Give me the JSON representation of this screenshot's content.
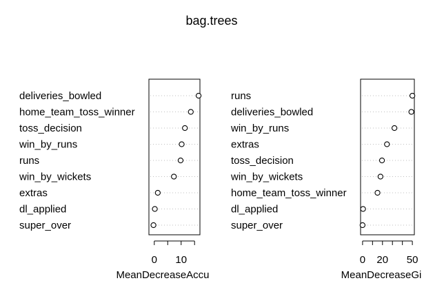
{
  "chart_data": [
    {
      "type": "dotchart",
      "title": "bag.trees",
      "xlabel": "MeanDecreaseAccu",
      "xlim": [
        -2,
        17
      ],
      "xticks": [
        0,
        5,
        10,
        15
      ],
      "xtick_labels": [
        "0",
        "",
        "10",
        ""
      ],
      "grid": "dotted-horizontal",
      "categories": [
        "deliveries_bowled",
        "home_team_toss_winner",
        "toss_decision",
        "win_by_runs",
        "runs",
        "win_by_wickets",
        "extras",
        "dl_applied",
        "super_over"
      ],
      "values": [
        16.5,
        13.6,
        11.4,
        10.2,
        9.8,
        7.3,
        1.3,
        0.2,
        -0.3
      ]
    },
    {
      "type": "dotchart",
      "title": "",
      "xlabel": "MeanDecreaseGi",
      "xlim": [
        -2,
        52
      ],
      "xticks": [
        0,
        10,
        20,
        30,
        40,
        50
      ],
      "xtick_labels": [
        "0",
        "",
        "20",
        "",
        "",
        "50"
      ],
      "grid": "dotted-horizontal",
      "categories": [
        "runs",
        "deliveries_bowled",
        "win_by_runs",
        "extras",
        "toss_decision",
        "win_by_wickets",
        "home_team_toss_winner",
        "dl_applied",
        "super_over"
      ],
      "values": [
        50,
        49,
        32,
        24.5,
        19.5,
        18,
        15,
        0.5,
        0
      ]
    }
  ]
}
